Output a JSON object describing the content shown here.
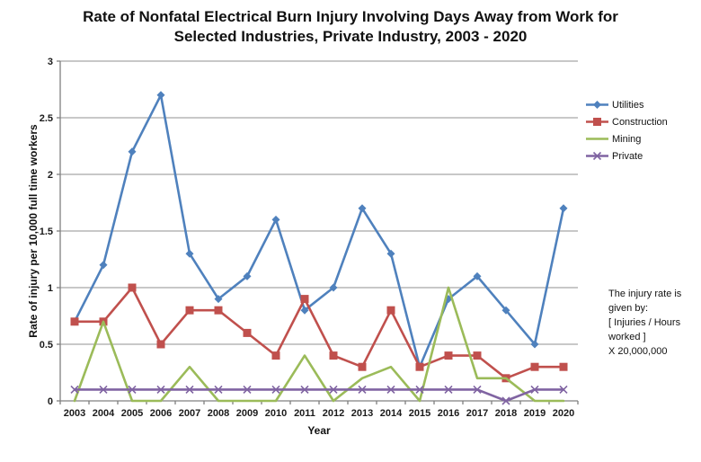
{
  "title": {
    "lines": [
      "Rate of Nonfatal Electrical Burn Injury Involving Days Away from Work for",
      "Selected Industries, Private Industry, 2003 - 2020"
    ]
  },
  "annotation": {
    "text": "The injury rate is\ngiven by:\n[ Injuries / Hours\nworked ]\nX 20,000,000"
  },
  "chart_data": {
    "type": "line",
    "title": "Rate of Nonfatal Electrical Burn Injury Involving Days Away from Work for Selected Industries, Private Industry, 2003 - 2020",
    "xlabel": "Year",
    "ylabel": "Rate of injury per 10,000 full time workers",
    "x": [
      2003,
      2004,
      2005,
      2006,
      2007,
      2008,
      2009,
      2010,
      2011,
      2012,
      2013,
      2014,
      2015,
      2016,
      2017,
      2018,
      2019,
      2020
    ],
    "ylim": [
      0,
      3
    ],
    "ytick_labels": [
      "0",
      "0.5",
      "1",
      "1.5",
      "2",
      "2.5",
      "3"
    ],
    "grid": true,
    "legend_position": "right",
    "colors": {
      "gridline": "#a6a6a6",
      "axis": "#808080",
      "text": "#1a1a1a"
    },
    "series": [
      {
        "name": "Utilities",
        "color": "#4F81BD",
        "marker": "diamond",
        "values": [
          0.7,
          1.2,
          2.2,
          2.7,
          1.3,
          0.9,
          1.1,
          1.6,
          0.8,
          1.0,
          1.7,
          1.3,
          0.3,
          0.9,
          1.1,
          0.8,
          0.5,
          1.7
        ]
      },
      {
        "name": "Construction",
        "color": "#C0504D",
        "marker": "square",
        "values": [
          0.7,
          0.7,
          1.0,
          0.5,
          0.8,
          0.8,
          0.6,
          0.4,
          0.9,
          0.4,
          0.3,
          0.8,
          0.3,
          0.4,
          0.4,
          0.2,
          0.3,
          0.3
        ]
      },
      {
        "name": "Mining",
        "color": "#9BBB59",
        "marker": "none",
        "values": [
          0,
          0.7,
          0,
          0,
          0.3,
          0,
          0,
          0,
          0.4,
          0,
          0.2,
          0.3,
          0,
          1.0,
          0.2,
          0.2,
          0,
          0
        ]
      },
      {
        "name": "Private",
        "color": "#8064A2",
        "marker": "x",
        "values": [
          0.1,
          0.1,
          0.1,
          0.1,
          0.1,
          0.1,
          0.1,
          0.1,
          0.1,
          0.1,
          0.1,
          0.1,
          0.1,
          0.1,
          0.1,
          0,
          0.1,
          0.1
        ]
      }
    ]
  }
}
